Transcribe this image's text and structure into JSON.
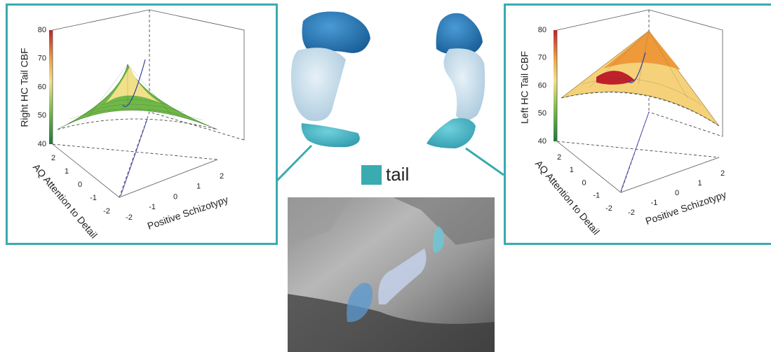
{
  "figure": {
    "legend_label": "tail",
    "plots": [
      {
        "z_label": "Right HC Tail CBF",
        "x_label": "AQ Attention to Detail",
        "y_label": "Positive Schizotypy",
        "z_ticks": [
          40,
          50,
          60,
          70,
          80
        ],
        "x_ticks": [
          2,
          1,
          0,
          -1,
          -2
        ],
        "y_ticks": [
          -2,
          -1,
          0,
          1,
          2
        ]
      },
      {
        "z_label": "Left HC Tail CBF",
        "x_label": "AQ Attention to Detail",
        "y_label": "Positive Schizotypy",
        "z_ticks": [
          40,
          50,
          60,
          70,
          80
        ],
        "x_ticks": [
          2,
          1,
          0,
          -1,
          -2
        ],
        "y_ticks": [
          -2,
          -1,
          0,
          1,
          2
        ]
      }
    ]
  }
}
